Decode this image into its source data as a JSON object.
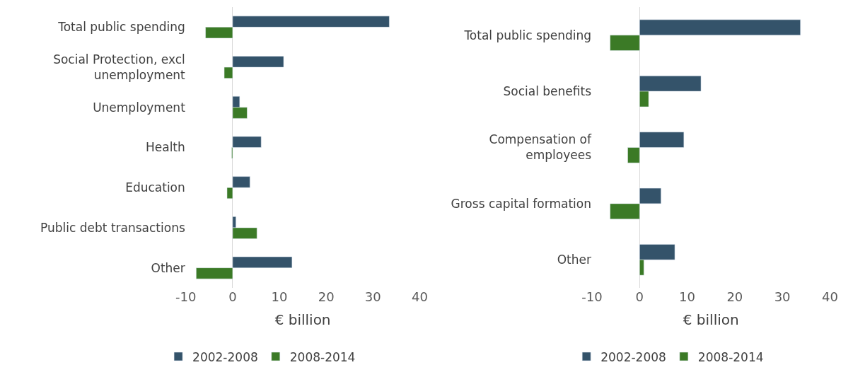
{
  "chart_data": [
    {
      "type": "bar",
      "orientation": "horizontal",
      "categories": [
        "Total public spending",
        "Social Protection, excl unemployment",
        "Unemployment",
        "Health",
        "Education",
        "Public debt transactions",
        "Other"
      ],
      "series": [
        {
          "name": "2002-2008",
          "color": "#34536a",
          "values": [
            33.5,
            10.9,
            1.5,
            6.1,
            3.7,
            0.7,
            12.7
          ]
        },
        {
          "name": "2008-2014",
          "color": "#3b7a26",
          "values": [
            -5.8,
            -1.8,
            3.1,
            -0.2,
            -1.2,
            5.2,
            -7.8
          ]
        }
      ],
      "xlim": [
        -10,
        40
      ],
      "xticks": [
        -10,
        0,
        10,
        20,
        30,
        40
      ],
      "xlabel": "€ billion",
      "legend": "bottom"
    },
    {
      "type": "bar",
      "orientation": "horizontal",
      "categories": [
        "Total public spending",
        "Social benefits",
        "Compensation of employees",
        "Gross capital formation",
        "Other"
      ],
      "series": [
        {
          "name": "2002-2008",
          "color": "#34536a",
          "values": [
            33.8,
            12.9,
            9.3,
            4.5,
            7.4
          ]
        },
        {
          "name": "2008-2014",
          "color": "#3b7a26",
          "values": [
            -6.2,
            1.9,
            -2.5,
            -6.2,
            0.9
          ]
        }
      ],
      "xlim": [
        -10,
        40
      ],
      "xticks": [
        -10,
        0,
        10,
        20,
        30,
        40
      ],
      "xlabel": "€ billion",
      "legend": "bottom"
    }
  ]
}
